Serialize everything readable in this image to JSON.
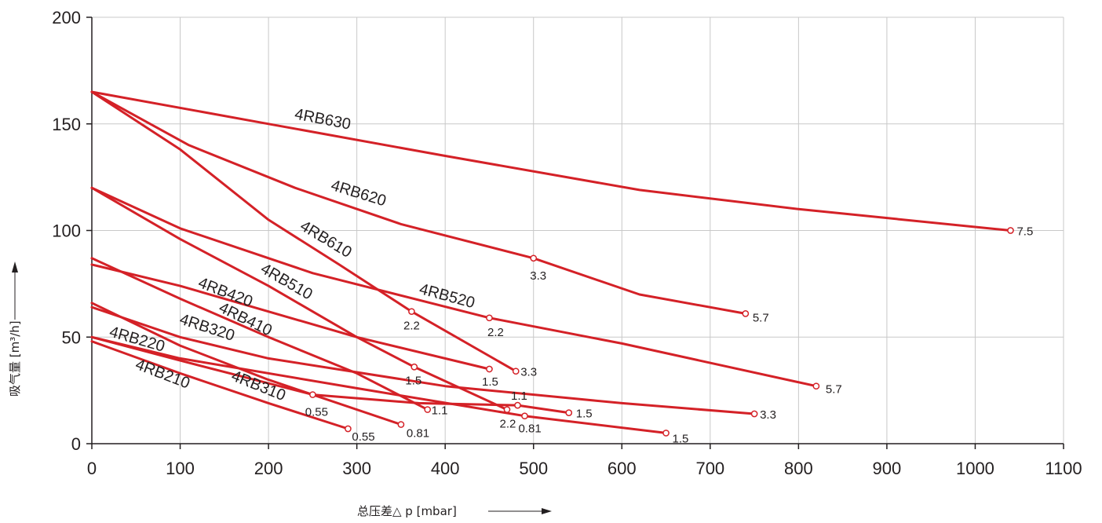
{
  "chart_data": {
    "type": "line",
    "title": "",
    "xlabel": "总压差△ p [mbar]",
    "ylabel": "吸气量 [m³/h]",
    "xlim": [
      0,
      1100
    ],
    "ylim": [
      0,
      200
    ],
    "x_ticks": [
      0,
      100,
      200,
      300,
      400,
      500,
      600,
      700,
      800,
      900,
      1000,
      1100
    ],
    "y_ticks": [
      0,
      50,
      100,
      150,
      200
    ],
    "grid": true,
    "line_color": "#d42127",
    "grid_color": "#c8c8c8",
    "axis_color": "#231f20",
    "series": [
      {
        "name": "4RB630",
        "points": [
          [
            0,
            165
          ],
          [
            200,
            150
          ],
          [
            400,
            135
          ],
          [
            620,
            119
          ],
          [
            800,
            110
          ],
          [
            1040,
            100
          ]
        ],
        "markers": [
          {
            "x": 1040,
            "y": 100,
            "label": "7.5"
          }
        ]
      },
      {
        "name": "4RB620",
        "points": [
          [
            0,
            165
          ],
          [
            110,
            140
          ],
          [
            230,
            120
          ],
          [
            350,
            103
          ],
          [
            500,
            87
          ],
          [
            620,
            70
          ],
          [
            740,
            61
          ]
        ],
        "markers": [
          {
            "x": 500,
            "y": 87,
            "label": "3.3"
          },
          {
            "x": 740,
            "y": 61,
            "label": "5.7"
          }
        ]
      },
      {
        "name": "4RB610",
        "points": [
          [
            0,
            165
          ],
          [
            100,
            138
          ],
          [
            200,
            105
          ],
          [
            280,
            84
          ],
          [
            362,
            62
          ],
          [
            480,
            34
          ]
        ],
        "markers": [
          {
            "x": 362,
            "y": 62,
            "label": "2.2"
          },
          {
            "x": 480,
            "y": 34,
            "label": "3.3"
          }
        ]
      },
      {
        "name": "4RB520",
        "points": [
          [
            0,
            120
          ],
          [
            100,
            101
          ],
          [
            250,
            80
          ],
          [
            450,
            59
          ],
          [
            600,
            47
          ],
          [
            820,
            27
          ]
        ],
        "markers": [
          {
            "x": 450,
            "y": 59,
            "label": "2.2"
          },
          {
            "x": 820,
            "y": 27,
            "label": "5.7"
          }
        ]
      },
      {
        "name": "4RB510",
        "points": [
          [
            0,
            120
          ],
          [
            100,
            96
          ],
          [
            200,
            74
          ],
          [
            300,
            50
          ],
          [
            365,
            36
          ],
          [
            470,
            16
          ]
        ],
        "markers": [
          {
            "x": 365,
            "y": 36,
            "label": "1.5"
          },
          {
            "x": 470,
            "y": 16,
            "label": "2.2"
          }
        ]
      },
      {
        "name": "4RB420",
        "points": [
          [
            0,
            84
          ],
          [
            100,
            74
          ],
          [
            300,
            50
          ],
          [
            450,
            35
          ]
        ],
        "markers": [
          {
            "x": 450,
            "y": 35,
            "label": "1.5"
          }
        ]
      },
      {
        "name": "4RB410",
        "points": [
          [
            0,
            87
          ],
          [
            100,
            68
          ],
          [
            200,
            50
          ],
          [
            300,
            33
          ],
          [
            380,
            16
          ]
        ],
        "markers": [
          {
            "x": 380,
            "y": 16,
            "label": "1.1"
          }
        ]
      },
      {
        "name": "4RB320",
        "points": [
          [
            0,
            64
          ],
          [
            100,
            50
          ],
          [
            200,
            40
          ],
          [
            400,
            27
          ],
          [
            600,
            19
          ],
          [
            750,
            14
          ]
        ],
        "markers": [
          {
            "x": 750,
            "y": 14,
            "label": "3.3"
          }
        ]
      },
      {
        "name": "4RB310",
        "points": [
          [
            0,
            66
          ],
          [
            100,
            46
          ],
          [
            200,
            30
          ],
          [
            350,
            9
          ]
        ],
        "markers": [
          {
            "x": 350,
            "y": 9,
            "label": "0.81"
          }
        ]
      },
      {
        "name": "4RB220",
        "points": [
          [
            0,
            50
          ],
          [
            100,
            39
          ],
          [
            250,
            23
          ],
          [
            370,
            19
          ],
          [
            482,
            18
          ],
          [
            540,
            14.5
          ]
        ],
        "markers": [
          {
            "x": 250,
            "y": 23,
            "label": "0.55"
          },
          {
            "x": 482,
            "y": 18,
            "label": "1.1"
          },
          {
            "x": 540,
            "y": 14.5,
            "label": "1.5"
          }
        ]
      },
      {
        "name": "4RB210",
        "points": [
          [
            0,
            48
          ],
          [
            100,
            33
          ],
          [
            200,
            19
          ],
          [
            290,
            7
          ]
        ],
        "markers": [
          {
            "x": 290,
            "y": 7,
            "label": "0.55"
          }
        ]
      },
      {
        "name": "",
        "points": [
          [
            0,
            50
          ],
          [
            100,
            40
          ],
          [
            300,
            26
          ],
          [
            490,
            13
          ],
          [
            650,
            5
          ]
        ],
        "markers": [
          {
            "x": 490,
            "y": 13,
            "label": "0.81"
          },
          {
            "x": 650,
            "y": 5,
            "label": "1.5"
          }
        ]
      }
    ]
  }
}
